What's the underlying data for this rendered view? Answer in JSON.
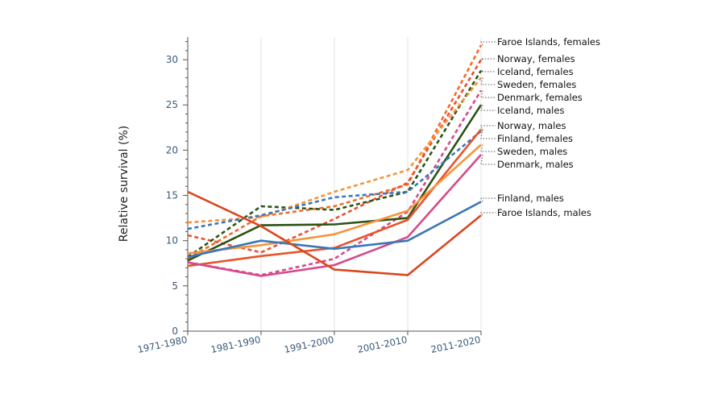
{
  "chart_data": {
    "type": "line",
    "ylabel": "Relative survival (%)",
    "xlabel": "",
    "categories": [
      "1971-1980",
      "1981-1990",
      "1991-2000",
      "2001-2010",
      "2011-2020"
    ],
    "ylim": [
      0,
      32.5
    ],
    "yticks": [
      0,
      5,
      10,
      15,
      20,
      25,
      30
    ],
    "grid": "vertical",
    "series": [
      {
        "name": "Faroe Islands, females",
        "color": "#f26b2a",
        "dashed": true,
        "values": [
          8.0,
          12.7,
          13.8,
          16.2,
          31.6
        ]
      },
      {
        "name": "Norway, females",
        "color": "#e8532b",
        "dashed": true,
        "values": [
          10.6,
          8.7,
          12.4,
          16.4,
          30.0
        ]
      },
      {
        "name": "Iceland, females",
        "color": "#2b5316",
        "dashed": true,
        "values": [
          8.2,
          13.8,
          13.4,
          15.4,
          28.8
        ]
      },
      {
        "name": "Sweden, females",
        "color": "#f7943a",
        "dashed": true,
        "values": [
          12.0,
          12.6,
          15.4,
          17.8,
          28.0
        ]
      },
      {
        "name": "Denmark, females",
        "color": "#d64a8a",
        "dashed": true,
        "values": [
          7.6,
          6.2,
          8.0,
          13.2,
          26.6
        ]
      },
      {
        "name": "Iceland, males",
        "color": "#2b5316",
        "dashed": false,
        "values": [
          7.8,
          11.7,
          11.8,
          12.5,
          25.0
        ]
      },
      {
        "name": "Norway, males",
        "color": "#3a78b8",
        "dashed": true,
        "values": [
          11.3,
          12.8,
          14.8,
          15.4,
          22.1
        ]
      },
      {
        "name": "Finland, females",
        "color": "#e8532b",
        "dashed": false,
        "values": [
          7.2,
          8.3,
          9.2,
          12.3,
          22.3
        ]
      },
      {
        "name": "Sweden, males",
        "color": "#f7943a",
        "dashed": false,
        "values": [
          8.6,
          9.5,
          10.7,
          13.3,
          20.6
        ]
      },
      {
        "name": "Denmark, males",
        "color": "#d64a8a",
        "dashed": false,
        "values": [
          7.6,
          6.1,
          7.3,
          10.4,
          19.5
        ]
      },
      {
        "name": "Finland, males",
        "color": "#3a78b8",
        "dashed": false,
        "values": [
          8.2,
          10.0,
          9.1,
          10.0,
          14.3
        ]
      },
      {
        "name": "Faroe Islands, males",
        "color": "#d9481f",
        "dashed": false,
        "values": [
          15.4,
          11.6,
          6.8,
          6.2,
          12.8
        ]
      }
    ]
  }
}
